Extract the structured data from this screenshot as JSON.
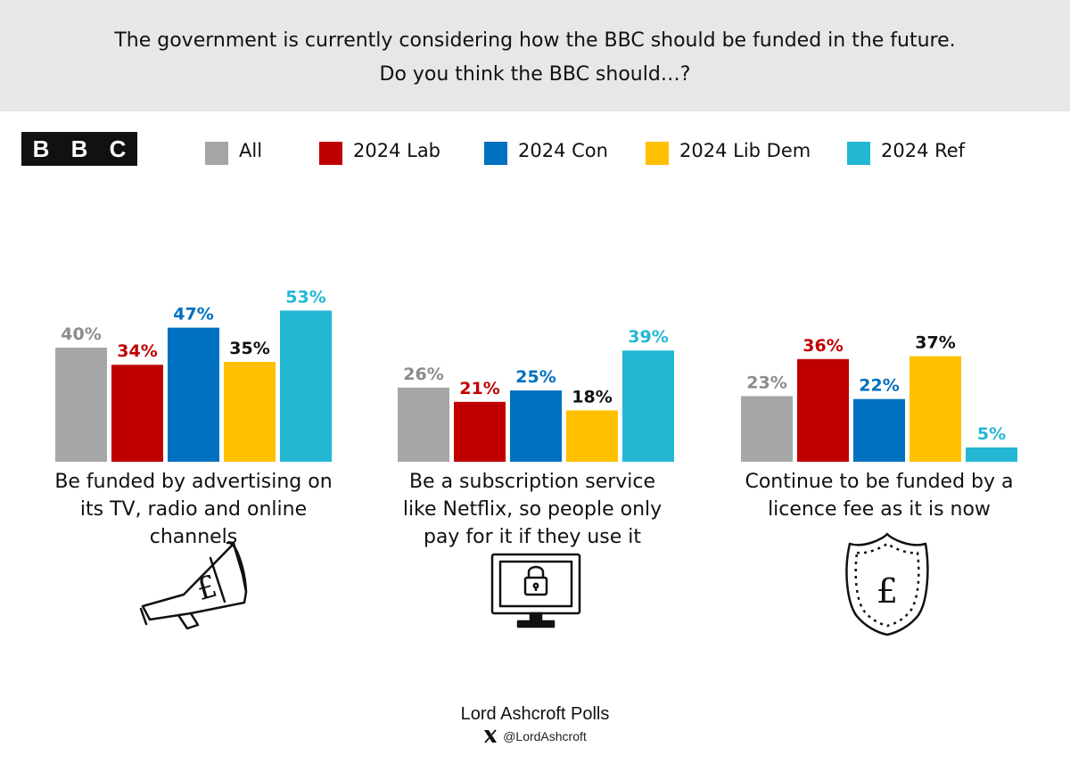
{
  "header": {
    "question_line1": "The government is currently considering how the BBC should be funded in the future.",
    "question_line2": "Do you think the BBC should…?"
  },
  "logo": {
    "letters": [
      "B",
      "B",
      "C"
    ]
  },
  "legend": [
    {
      "label": "All",
      "color": "#a6a6a6"
    },
    {
      "label": "2024 Lab",
      "color": "#c00000"
    },
    {
      "label": "2024 Con",
      "color": "#0070c0"
    },
    {
      "label": "2024 Lib Dem",
      "color": "#ffc000"
    },
    {
      "label": "2024 Ref",
      "color": "#23b7d4"
    }
  ],
  "chart_data": {
    "type": "bar",
    "title": "The government is currently considering how the BBC should be funded in the future. Do you think the BBC should…?",
    "categories": [
      "Be funded by advertising on its TV, radio and online channels",
      "Be a subscription service like Netflix, so people only pay for it if they use it",
      "Continue to be funded by a licence fee as it is now"
    ],
    "category_lines": [
      [
        "Be funded by advertising on",
        "its TV, radio and online",
        "channels"
      ],
      [
        "Be a subscription service",
        "like Netflix, so people only",
        "pay for it if they use it"
      ],
      [
        "Continue to be funded by a",
        "licence fee as it is now"
      ]
    ],
    "series": [
      {
        "name": "All",
        "color": "#a6a6a6",
        "label_color": "#8c8c8c",
        "values": [
          40,
          26,
          23
        ]
      },
      {
        "name": "2024 Lab",
        "color": "#c00000",
        "label_color": "#c00000",
        "values": [
          34,
          21,
          36
        ]
      },
      {
        "name": "2024 Con",
        "color": "#0070c0",
        "label_color": "#0070c0",
        "values": [
          47,
          25,
          22
        ]
      },
      {
        "name": "2024 Lib Dem",
        "color": "#ffc000",
        "label_color": "#111111",
        "values": [
          35,
          18,
          37
        ]
      },
      {
        "name": "2024 Ref",
        "color": "#23b7d4",
        "label_color": "#23b7d4",
        "values": [
          53,
          39,
          5
        ]
      }
    ],
    "value_suffix": "%",
    "ylim": [
      0,
      60
    ],
    "xlabel": "",
    "ylabel": "",
    "grid": false,
    "icons": [
      "megaphone-pound-icon",
      "monitor-padlock-icon",
      "shield-pound-icon"
    ]
  },
  "footer": {
    "title": "Lord Ashcroft Polls",
    "handle": "@LordAshcroft"
  }
}
